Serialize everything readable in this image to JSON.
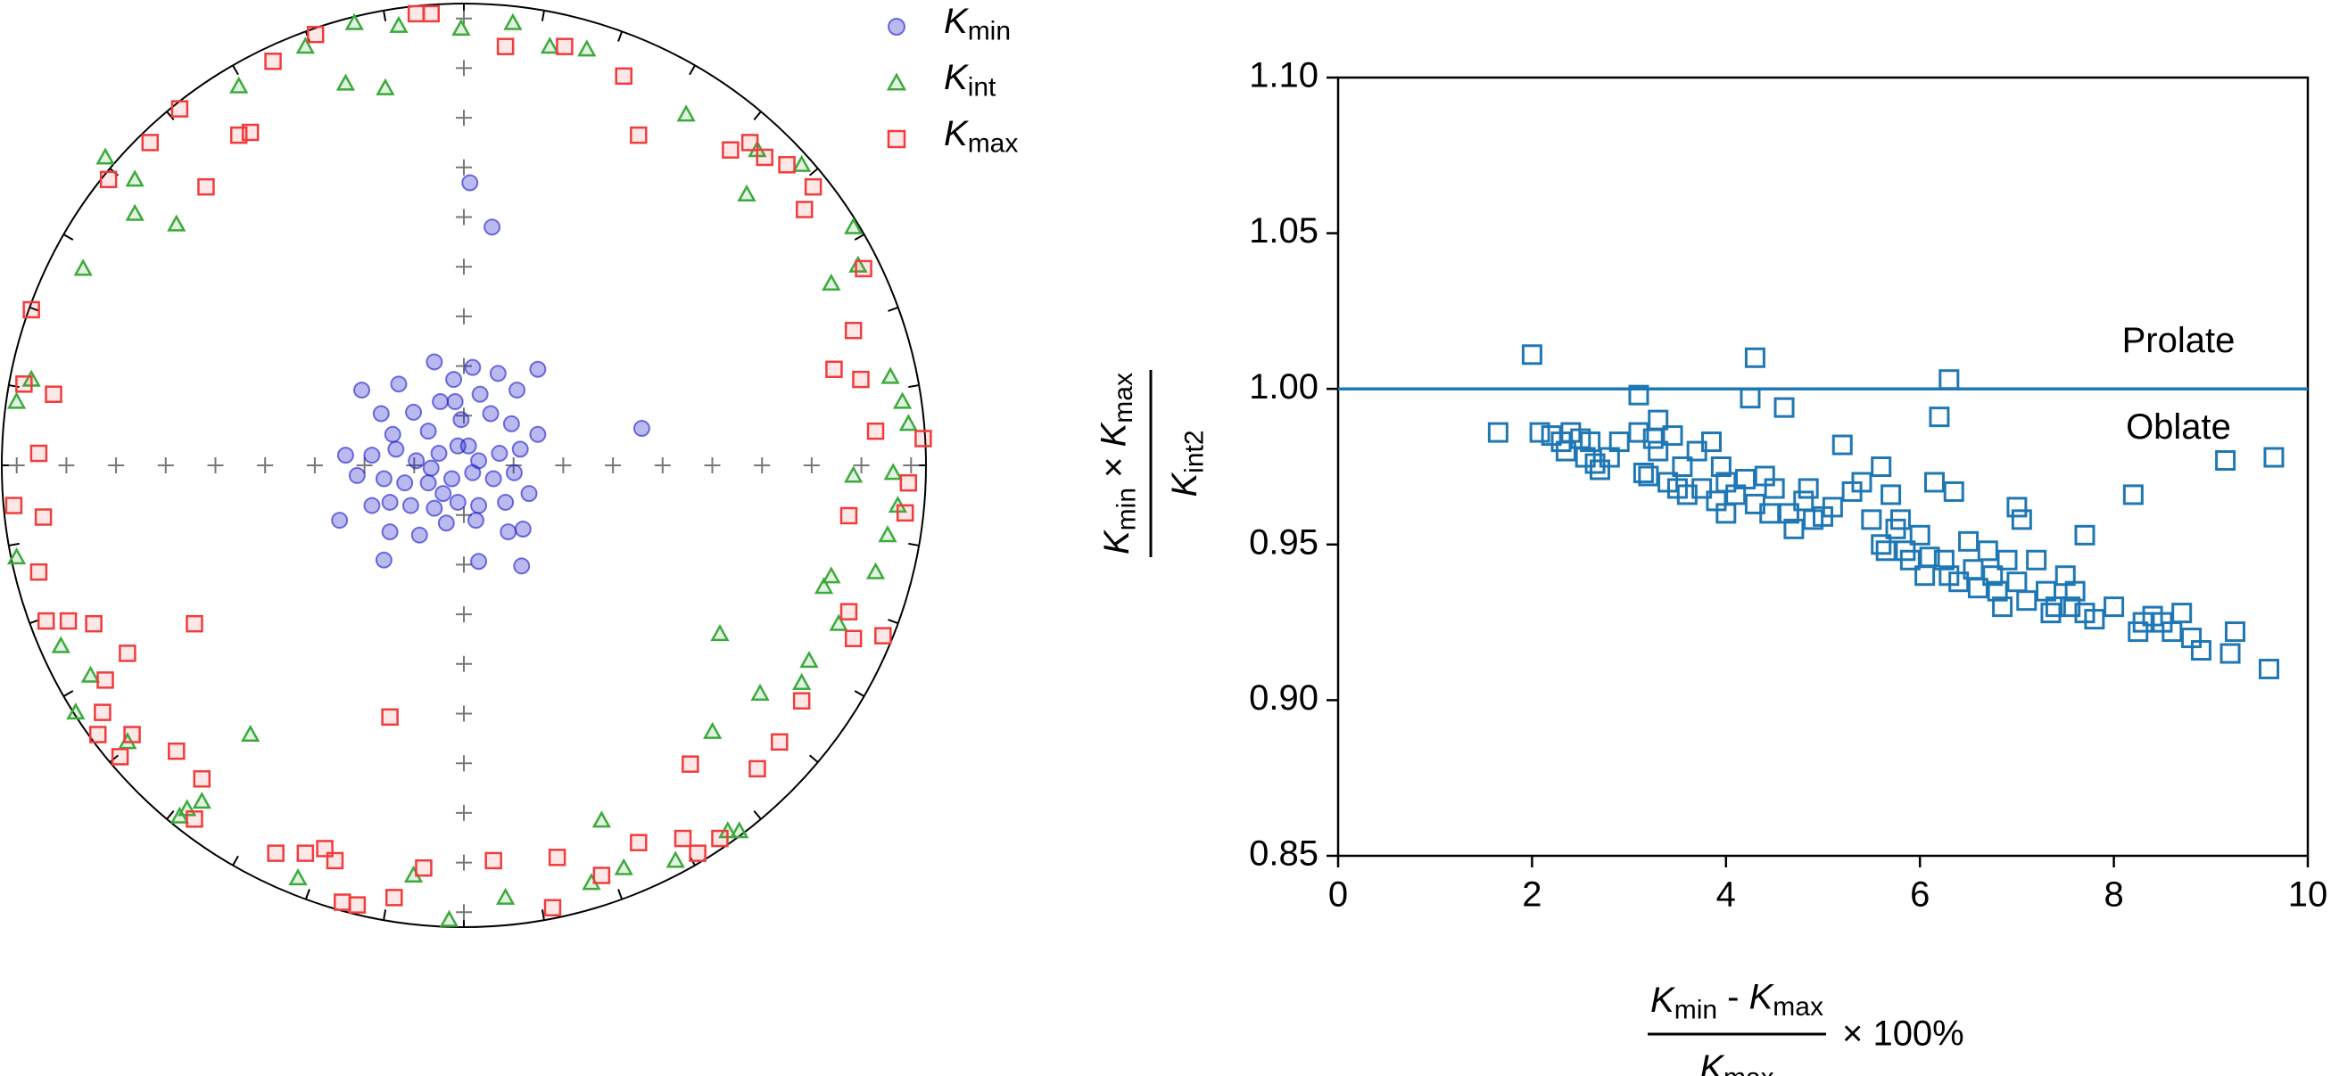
{
  "chart_data": [
    {
      "type": "stereonet",
      "series": [
        {
          "name": "Kmin",
          "marker": "circle",
          "color": "#1a1acc",
          "x": [
            -0.221,
            -0.141,
            -0.064,
            -0.022,
            0.019,
            0.074,
            0.16,
            0.115,
            0.035,
            -0.051,
            -0.109,
            -0.179,
            -0.154,
            -0.077,
            -0.006,
            0.058,
            0.103,
            0.16,
            0.122,
            0.077,
            0.032,
            -0.013,
            -0.054,
            -0.103,
            -0.147,
            -0.199,
            -0.256,
            -0.231,
            -0.173,
            -0.128,
            -0.077,
            -0.026,
            0.019,
            0.064,
            0.109,
            0.141,
            0.09,
            0.032,
            -0.013,
            -0.064,
            -0.115,
            -0.16,
            -0.199,
            -0.269,
            -0.038,
            0.026,
            0.096,
            0.128,
            -0.16,
            -0.096,
            0.032,
            0.125,
            -0.173,
            0.013,
            0.061,
            0.385,
            -0.019,
            0.01,
            -0.071,
            -0.045
          ],
          "y": [
            0.163,
            0.176,
            0.224,
            0.186,
            0.212,
            0.199,
            0.208,
            0.163,
            0.154,
            0.138,
            0.115,
            0.112,
            0.067,
            0.074,
            0.099,
            0.112,
            0.09,
            0.067,
            0.035,
            0.026,
            0.01,
            0.042,
            0.026,
            0.01,
            0.035,
            0.022,
            0.022,
            -0.022,
            -0.029,
            -0.038,
            -0.038,
            -0.029,
            -0.016,
            -0.029,
            -0.016,
            -0.061,
            -0.08,
            -0.087,
            -0.08,
            -0.093,
            -0.087,
            -0.08,
            -0.087,
            -0.119,
            -0.125,
            -0.119,
            -0.144,
            -0.138,
            -0.144,
            -0.151,
            -0.208,
            -0.218,
            -0.205,
            0.612,
            0.516,
            0.08,
            0.138,
            0.042,
            -0.006,
            -0.061
          ]
        },
        {
          "name": "Kint",
          "marker": "triangle",
          "color": "#3caa3c",
          "x": [
            -0.237,
            -0.141,
            -0.006,
            0.106,
            -0.343,
            -0.487,
            -0.256,
            -0.17,
            0.186,
            0.266,
            0.481,
            0.635,
            0.612,
            0.731,
            0.843,
            0.853,
            0.795,
            -0.824,
            -0.712,
            -0.712,
            -0.622,
            -0.776,
            -0.936,
            -0.968,
            -0.968,
            0.923,
            0.949,
            0.962,
            0.929,
            0.843,
            0.939,
            0.917,
            0.891,
            0.795,
            0.779,
            0.554,
            0.747,
            0.731,
            0.641,
            0.538,
            0.596,
            0.298,
            -0.462,
            -0.599,
            -0.567,
            -0.84,
            -0.872,
            -0.808,
            -0.032,
            -0.109,
            0.09,
            0.276,
            0.346,
            0.458,
            0.571,
            -0.359,
            -0.615,
            -0.728,
            0.811
          ],
          "y": [
            0.958,
            0.952,
            0.946,
            0.958,
            0.907,
            0.821,
            0.827,
            0.817,
            0.907,
            0.901,
            0.76,
            0.683,
            0.587,
            0.651,
            0.516,
            0.433,
            0.394,
            0.426,
            0.619,
            0.545,
            0.522,
            0.667,
            0.186,
            0.138,
            -0.199,
            0.192,
            0.138,
            0.09,
            -0.016,
            -0.022,
            -0.087,
            -0.151,
            -0.231,
            -0.24,
            -0.263,
            -0.365,
            -0.423,
            -0.471,
            -0.494,
            -0.577,
            -0.792,
            -0.769,
            -0.583,
            -0.744,
            -0.728,
            -0.535,
            -0.391,
            -0.455,
            -0.984,
            -0.888,
            -0.936,
            -0.904,
            -0.872,
            -0.856,
            -0.792,
            -0.894,
            -0.76,
            -0.599,
            -0.343
          ]
        },
        {
          "name": "Kmax",
          "marker": "square",
          "color": "#f03c3c",
          "x": [
            -0.321,
            -0.103,
            -0.071,
            0.09,
            0.218,
            0.346,
            -0.413,
            -0.615,
            -0.679,
            -0.769,
            -0.558,
            -0.487,
            -0.462,
            0.378,
            0.577,
            0.619,
            0.651,
            0.699,
            0.756,
            0.737,
            0.865,
            0.843,
            0.801,
            0.859,
            0.891,
            0.994,
            0.962,
            0.955,
            0.833,
            -0.936,
            -0.888,
            -0.952,
            -0.92,
            -0.974,
            -0.91,
            -0.92,
            -0.904,
            -0.856,
            -0.801,
            -0.728,
            -0.776,
            -0.782,
            -0.744,
            -0.718,
            -0.792,
            -0.622,
            -0.567,
            -0.583,
            -0.16,
            -0.583,
            -0.407,
            -0.343,
            -0.279,
            -0.301,
            -0.263,
            -0.151,
            -0.231,
            -0.087,
            0.064,
            0.202,
            0.192,
            0.298,
            0.378,
            0.474,
            0.506,
            0.554,
            0.49,
            0.635,
            0.683,
            0.731,
            0.843,
            0.833,
            0.907
          ],
          "y": [
            0.933,
            0.978,
            0.978,
            0.907,
            0.907,
            0.843,
            0.875,
            0.772,
            0.699,
            0.619,
            0.603,
            0.715,
            0.721,
            0.715,
            0.683,
            0.699,
            0.667,
            0.651,
            0.603,
            0.554,
            0.426,
            0.292,
            0.208,
            0.186,
            0.074,
            0.058,
            -0.038,
            -0.103,
            -0.109,
            0.337,
            0.154,
            0.176,
            0.026,
            -0.087,
            -0.112,
            -0.231,
            -0.337,
            -0.337,
            -0.343,
            -0.407,
            -0.465,
            -0.535,
            -0.631,
            -0.583,
            -0.583,
            -0.619,
            -0.679,
            -0.343,
            -0.545,
            -0.766,
            -0.84,
            -0.84,
            -0.856,
            -0.83,
            -0.946,
            -0.936,
            -0.952,
            -0.872,
            -0.856,
            -0.849,
            -0.958,
            -0.888,
            -0.817,
            -0.808,
            -0.84,
            -0.808,
            -0.647,
            -0.657,
            -0.599,
            -0.51,
            -0.375,
            -0.317,
            -0.369
          ]
        }
      ]
    },
    {
      "type": "scatter",
      "marker": "square",
      "color": "#1f77b4",
      "x": [
        1.65,
        2.0,
        2.08,
        2.2,
        2.3,
        2.35,
        2.4,
        2.5,
        2.55,
        2.6,
        2.65,
        2.7,
        2.8,
        2.9,
        3.1,
        3.1,
        3.15,
        3.2,
        3.25,
        3.3,
        3.3,
        3.4,
        3.45,
        3.5,
        3.55,
        3.6,
        3.7,
        3.75,
        3.85,
        3.9,
        3.95,
        4.0,
        4.0,
        4.1,
        4.2,
        4.25,
        4.3,
        4.3,
        4.4,
        4.45,
        4.5,
        4.6,
        4.65,
        4.7,
        4.8,
        4.85,
        4.9,
        5.0,
        5.1,
        5.2,
        5.3,
        5.4,
        5.5,
        5.6,
        5.6,
        5.65,
        5.7,
        5.75,
        5.8,
        5.85,
        5.9,
        6.0,
        6.05,
        6.1,
        6.15,
        6.2,
        6.25,
        6.3,
        6.3,
        6.35,
        6.4,
        6.5,
        6.55,
        6.6,
        6.7,
        6.75,
        6.8,
        6.85,
        6.9,
        7.0,
        7.0,
        7.05,
        7.1,
        7.2,
        7.3,
        7.35,
        7.4,
        7.5,
        7.55,
        7.6,
        7.7,
        7.7,
        7.8,
        8.0,
        8.2,
        8.25,
        8.3,
        8.4,
        8.5,
        8.6,
        8.7,
        8.8,
        8.9,
        9.15,
        9.2,
        9.25,
        9.6,
        9.65
      ],
      "y": [
        0.986,
        1.011,
        0.986,
        0.985,
        0.983,
        0.98,
        0.986,
        0.984,
        0.978,
        0.983,
        0.976,
        0.974,
        0.978,
        0.983,
        0.998,
        0.986,
        0.973,
        0.972,
        0.984,
        0.99,
        0.98,
        0.97,
        0.985,
        0.968,
        0.975,
        0.966,
        0.98,
        0.968,
        0.983,
        0.964,
        0.975,
        0.97,
        0.96,
        0.966,
        0.971,
        0.997,
        1.01,
        0.963,
        0.972,
        0.96,
        0.968,
        0.994,
        0.96,
        0.955,
        0.964,
        0.968,
        0.958,
        0.959,
        0.962,
        0.982,
        0.967,
        0.97,
        0.958,
        0.975,
        0.95,
        0.948,
        0.966,
        0.955,
        0.958,
        0.948,
        0.945,
        0.953,
        0.94,
        0.946,
        0.97,
        0.991,
        0.945,
        1.003,
        0.94,
        0.967,
        0.938,
        0.951,
        0.942,
        0.936,
        0.948,
        0.94,
        0.935,
        0.93,
        0.945,
        0.938,
        0.962,
        0.958,
        0.932,
        0.945,
        0.935,
        0.928,
        0.93,
        0.94,
        0.93,
        0.935,
        0.953,
        0.928,
        0.926,
        0.93,
        0.966,
        0.922,
        0.925,
        0.927,
        0.925,
        0.922,
        0.928,
        0.92,
        0.916,
        0.977,
        0.915,
        0.922,
        0.91,
        0.978
      ],
      "xlim": [
        0,
        10
      ],
      "xticks": [
        0,
        2,
        4,
        6,
        8,
        10
      ],
      "ylim": [
        0.85,
        1.1
      ],
      "yticks": [
        0.85,
        {
          "value": 0.9,
          "label": "0.90"
        },
        0.95,
        {
          "value": 1.0,
          "label": "1.00"
        },
        1.05,
        {
          "value": 1.1,
          "label": "1.10"
        }
      ],
      "hline": 1.0,
      "xlabel": {
        "numerator": "Kmin - Kmax",
        "denominator": "Kmax",
        "suffix": "× 100%"
      },
      "ylabel": {
        "numerator": "Kmin × Kmax",
        "denominator": "Kint2"
      },
      "annotations": [
        "Prolate",
        "Oblate"
      ]
    }
  ]
}
